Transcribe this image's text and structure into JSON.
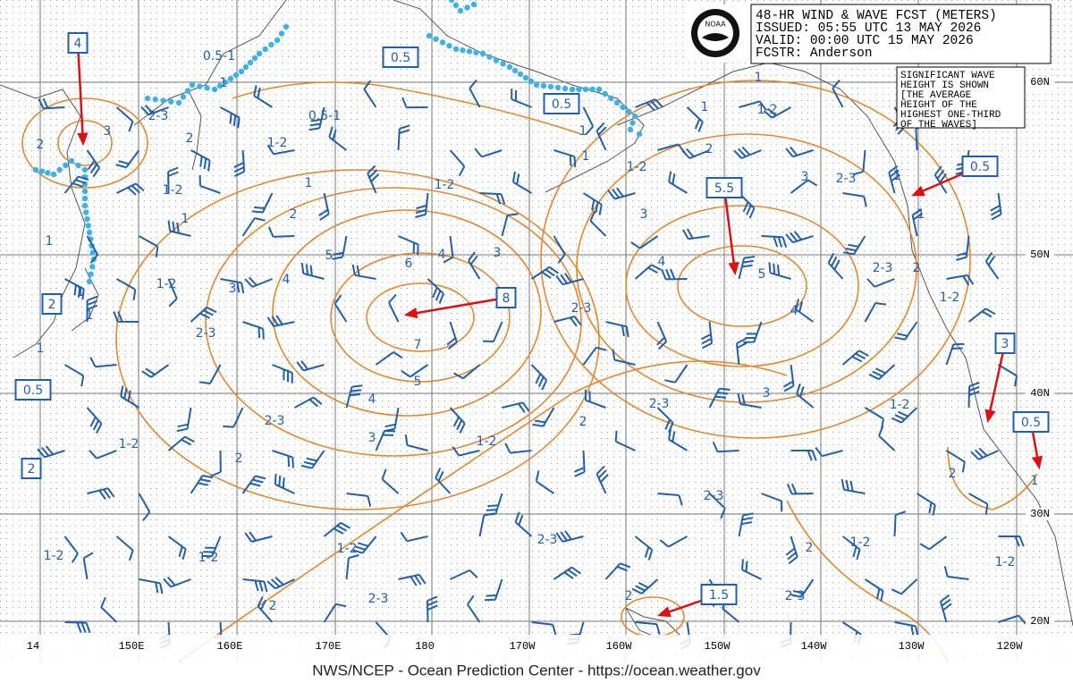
{
  "header": {
    "title": "48-HR WIND & WAVE FCST (METERS)",
    "issued": "ISSUED: 05:55 UTC 13 MAY 2026",
    "valid": "VALID:  00:00 UTC 15 MAY 2026",
    "forecaster": "FCSTR:  Anderson"
  },
  "logo": "NOAA",
  "note": [
    "SIGNIFICANT WAVE",
    "HEIGHT IS SHOWN",
    "[THE AVERAGE",
    "HEIGHT OF THE",
    "HIGHEST ONE-THIRD",
    "OF THE WAVES]"
  ],
  "longitude_labels": [
    "14",
    "150E",
    "160E",
    "170E",
    "180",
    "170W",
    "160W",
    "150W",
    "140W",
    "130W",
    "120W"
  ],
  "latitude_labels": [
    "60N",
    "50N",
    "40N",
    "30N",
    "20N"
  ],
  "boxed_labels": [
    "4",
    "0.5",
    "0.5",
    "5.5",
    "8",
    "2",
    "0.5",
    "2",
    "0.5",
    "3",
    "0.5",
    "1.5"
  ],
  "contour_labels": [
    "0.5-1",
    "1",
    "2-3",
    "2",
    "3",
    "2",
    "1-2",
    "1",
    "1",
    "1",
    "1",
    "1",
    "0.5-1",
    "1-2",
    "1",
    "2",
    "1-2",
    "1",
    "1-2",
    "1",
    "3",
    "4",
    "2",
    "1",
    "1",
    "1-2",
    "3",
    "2-3",
    "1",
    "1",
    "2-3",
    "2",
    "1-2",
    "5",
    "4",
    "3",
    "5",
    "6",
    "4",
    "3",
    "4",
    "3",
    "1-2",
    "2-3",
    "7",
    "5",
    "4",
    "3",
    "2-3",
    "2",
    "1-2",
    "2-3",
    "2-3",
    "2",
    "1-2",
    "1-2",
    "2",
    "1",
    "2-3",
    "2-3",
    "1-2",
    "1-2",
    "1-2",
    "2",
    "1-2",
    "1-2",
    "2",
    "2-3",
    "2-3",
    "2"
  ],
  "footer": "NWS/NCEP - Ocean Prediction Center - https://ocean.weather.gov"
}
